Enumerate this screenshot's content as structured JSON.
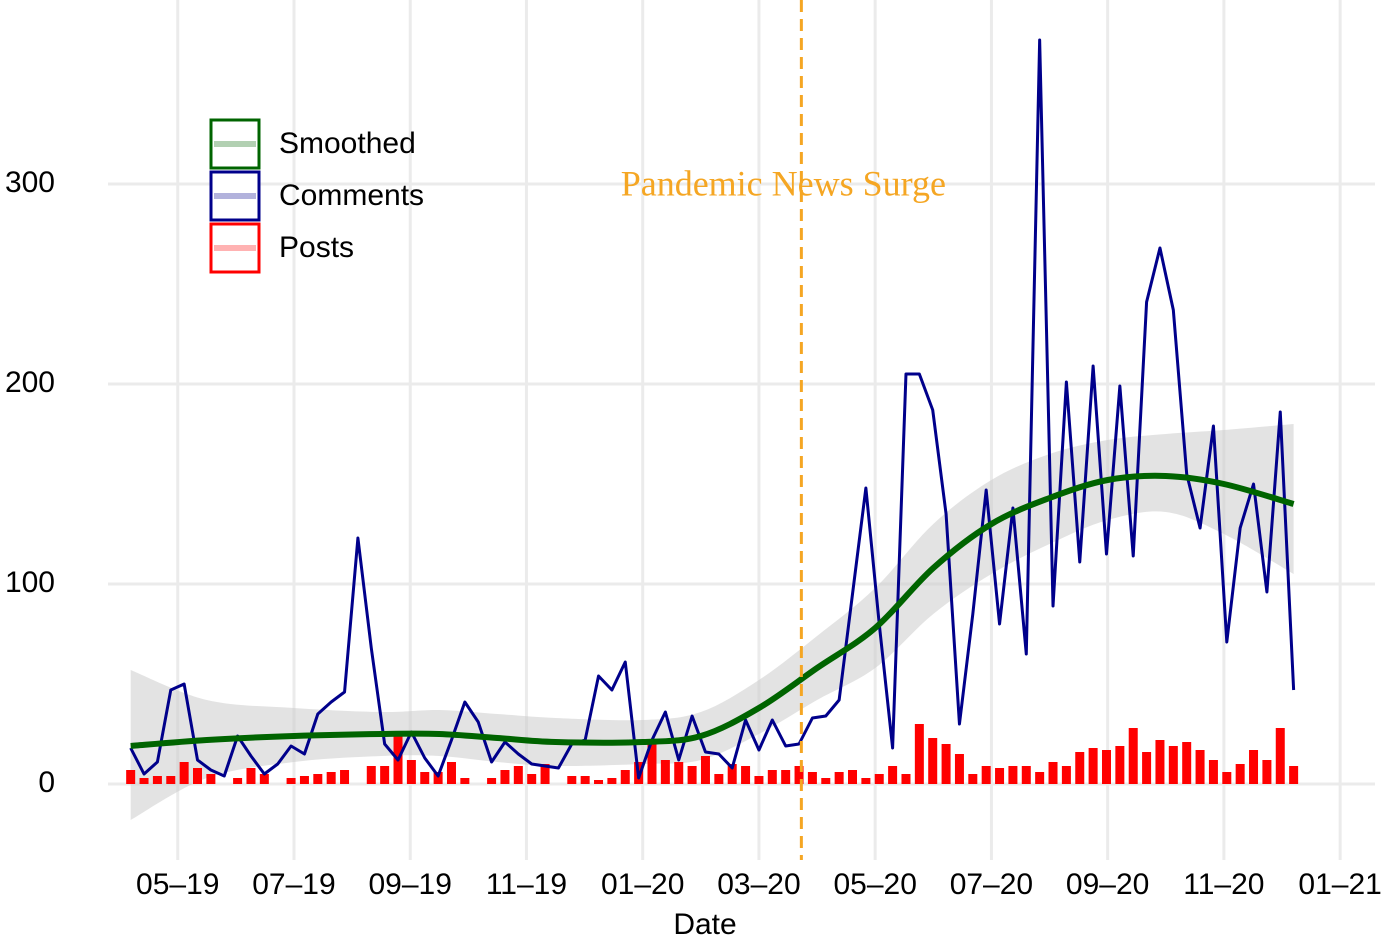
{
  "chart_data": {
    "type": "combo",
    "x_label": "Date",
    "xlim": [
      3.8,
      25.6
    ],
    "xticks": [
      {
        "value": 5,
        "label": "05–19"
      },
      {
        "value": 7,
        "label": "07–19"
      },
      {
        "value": 9,
        "label": "09–19"
      },
      {
        "value": 11,
        "label": "11–19"
      },
      {
        "value": 13,
        "label": "01–20"
      },
      {
        "value": 15,
        "label": "03–20"
      },
      {
        "value": 17,
        "label": "05–20"
      },
      {
        "value": 19,
        "label": "07–20"
      },
      {
        "value": 21,
        "label": "09–20"
      },
      {
        "value": 23,
        "label": "11–20"
      },
      {
        "value": 25,
        "label": "01–21"
      }
    ],
    "ylim": [
      -38,
      392
    ],
    "yticks": [
      0,
      100,
      200,
      300
    ],
    "grid": true,
    "legend": "top-left",
    "annotation": {
      "text": "Pandemic News Surge",
      "x": 15.73,
      "color": "#f5a623"
    },
    "x": [
      4.19,
      4.42,
      4.65,
      4.88,
      5.11,
      5.34,
      5.57,
      5.8,
      6.03,
      6.26,
      6.49,
      6.72,
      6.95,
      7.18,
      7.41,
      7.64,
      7.87,
      8.1,
      8.33,
      8.56,
      8.79,
      9.02,
      9.25,
      9.48,
      9.71,
      9.94,
      10.17,
      10.4,
      10.63,
      10.86,
      11.09,
      11.32,
      11.55,
      11.78,
      12.01,
      12.24,
      12.47,
      12.7,
      12.93,
      13.16,
      13.39,
      13.62,
      13.85,
      14.08,
      14.31,
      14.54,
      14.77,
      15,
      15.23,
      15.46,
      15.69,
      15.92,
      16.15,
      16.38,
      16.61,
      16.84,
      17.07,
      17.3,
      17.53,
      17.76,
      17.99,
      18.22,
      18.45,
      18.68,
      18.91,
      19.14,
      19.37,
      19.6,
      19.83,
      20.06,
      20.29,
      20.52,
      20.75,
      20.98,
      21.21,
      21.44,
      21.67,
      21.9,
      22.13,
      22.36,
      22.59,
      22.82,
      23.05,
      23.28,
      23.51,
      23.74,
      23.97,
      24.2
    ],
    "series": [
      {
        "name": "Smoothed",
        "type": "smooth",
        "color": "#006400",
        "band_color": "#cccccc",
        "x": [
          4.19,
          5.5,
          7,
          8.5,
          9.5,
          10.5,
          11.5,
          13,
          14,
          15,
          16,
          17,
          18,
          19,
          20,
          21,
          22,
          23,
          24.2
        ],
        "values": [
          19,
          22,
          24,
          25,
          25,
          23,
          21,
          21,
          24,
          38,
          58,
          78,
          108,
          130,
          143,
          152,
          154,
          150,
          140
        ],
        "lower": [
          -18,
          3,
          11,
          14,
          14,
          11,
          9,
          10,
          12,
          25,
          42,
          58,
          85,
          105,
          120,
          132,
          136,
          125,
          105
        ],
        "upper": [
          57,
          42,
          38,
          36,
          37,
          35,
          33,
          32,
          36,
          52,
          74,
          98,
          130,
          152,
          165,
          172,
          175,
          177,
          180
        ]
      },
      {
        "name": "Comments",
        "type": "line",
        "color": "#00008b",
        "values": [
          18,
          5,
          11,
          47,
          50,
          12,
          7,
          4,
          24,
          14,
          5,
          10,
          19,
          15,
          35,
          41,
          46,
          123,
          68,
          20,
          12,
          26,
          13,
          4,
          22,
          41,
          31,
          11,
          21,
          15,
          10,
          9,
          8,
          20,
          22,
          54,
          47,
          61,
          3,
          22,
          36,
          12,
          34,
          16,
          15,
          8,
          32,
          17,
          32,
          19,
          20,
          33,
          34,
          42,
          95,
          148,
          80,
          18,
          205,
          205,
          187,
          135,
          30,
          85,
          147,
          80,
          138,
          65,
          372,
          89,
          201,
          111,
          209,
          115,
          199,
          114,
          241,
          268,
          237,
          155,
          128,
          179,
          71,
          128,
          150,
          96,
          186,
          47
        ]
      },
      {
        "name": "Posts",
        "type": "bar",
        "color": "#ff0000",
        "values": [
          7,
          3,
          4,
          4,
          11,
          8,
          5,
          0,
          3,
          8,
          5,
          0,
          3,
          4,
          5,
          6,
          7,
          0,
          9,
          9,
          24,
          12,
          6,
          6,
          11,
          3,
          0,
          3,
          7,
          9,
          5,
          10,
          0,
          4,
          4,
          2,
          3,
          7,
          11,
          20,
          12,
          11,
          9,
          14,
          5,
          10,
          9,
          4,
          7,
          7,
          9,
          6,
          3,
          6,
          7,
          3,
          5,
          9,
          5,
          30,
          23,
          20,
          15,
          5,
          9,
          8,
          9,
          9,
          6,
          11,
          9,
          16,
          18,
          17,
          19,
          28,
          16,
          22,
          19,
          21,
          17,
          12,
          6,
          10,
          17,
          12,
          28,
          9
        ]
      }
    ]
  }
}
